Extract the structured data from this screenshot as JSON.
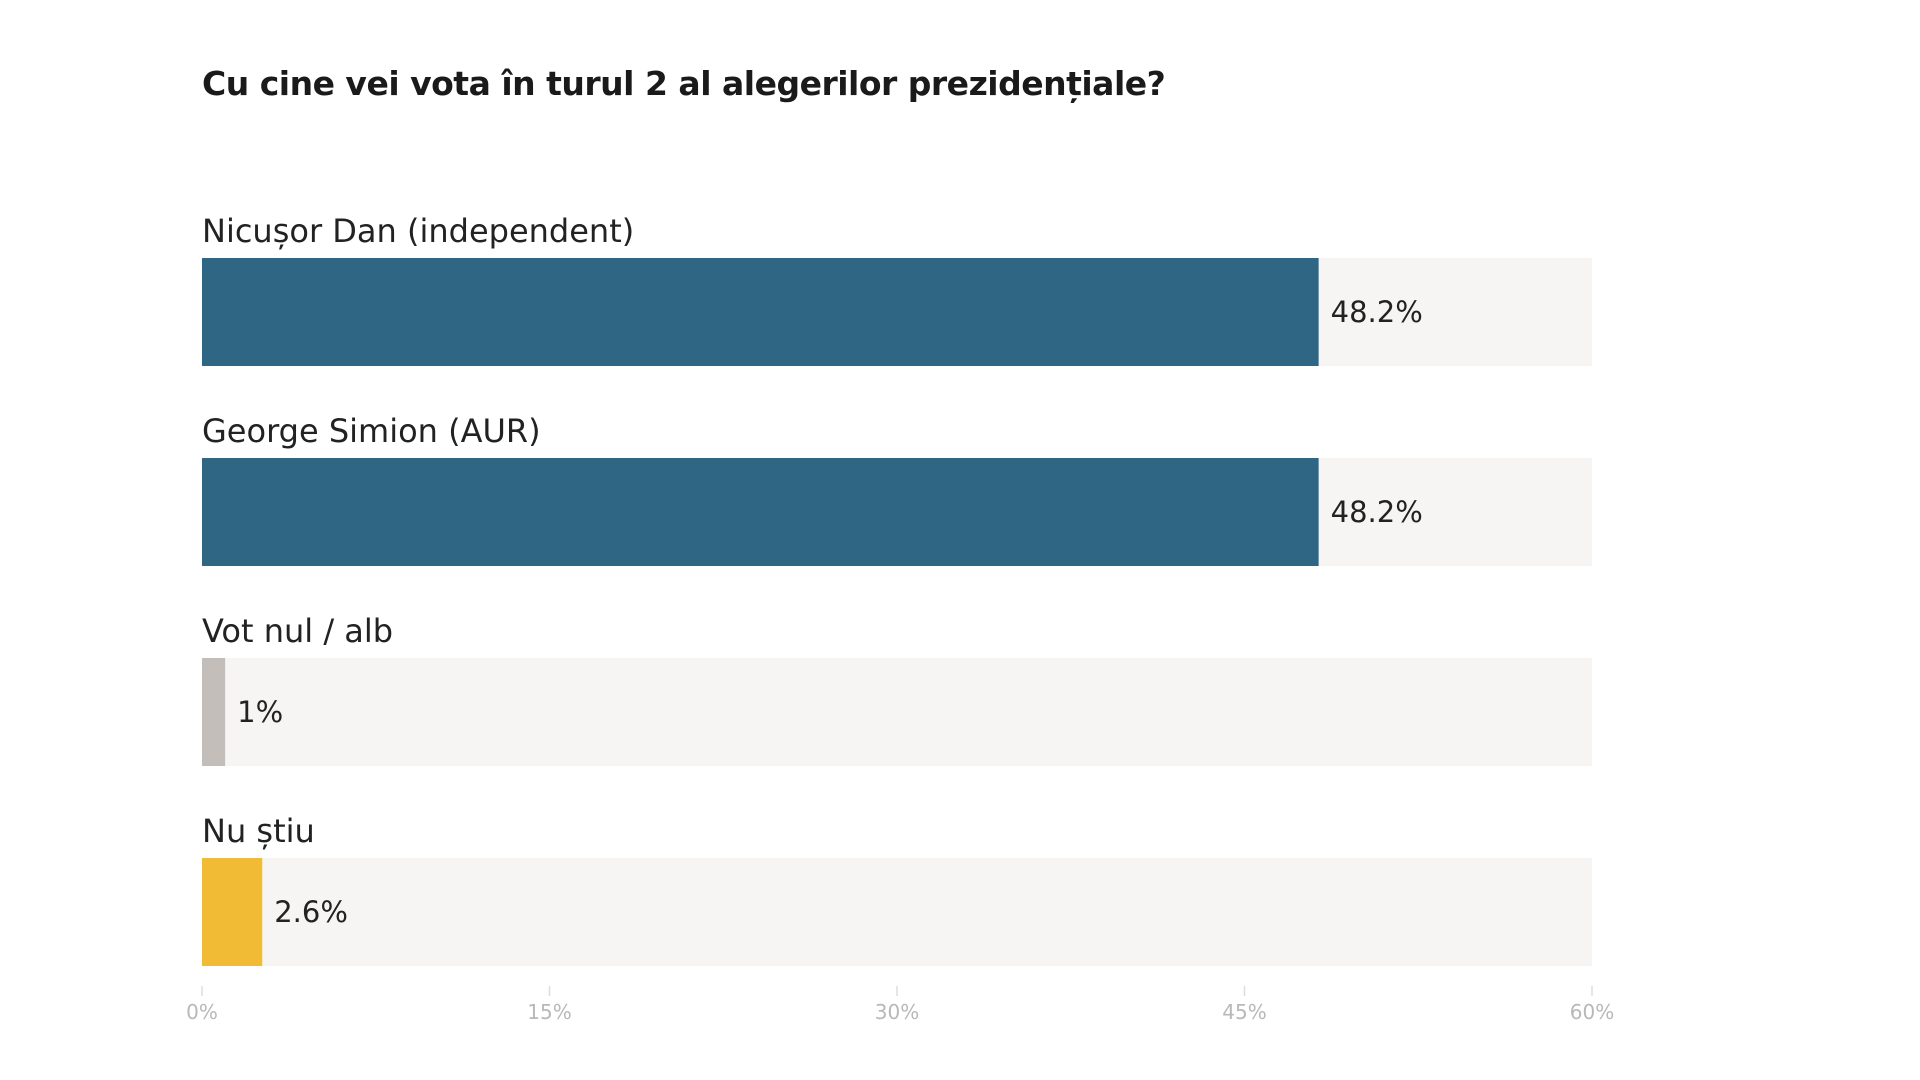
{
  "chart_data": {
    "type": "bar",
    "orientation": "horizontal",
    "title": "Cu cine vei vota în turul 2 al alegerilor prezidențiale?",
    "categories": [
      "Nicușor Dan (independent)",
      "George Simion (AUR)",
      "Vot nul / alb",
      "Nu știu"
    ],
    "values": [
      48.2,
      48.2,
      1,
      2.6
    ],
    "value_labels": [
      "48.2%",
      "48.2%",
      "1%",
      "2.6%"
    ],
    "colors": [
      "#2f6683",
      "#2f6683",
      "#c4bebb",
      "#f2bb36"
    ],
    "track_color": "#f6f5f3",
    "xlim": [
      0,
      60
    ],
    "x_ticks": [
      0,
      15,
      30,
      45,
      60
    ],
    "x_tick_labels": [
      "0%",
      "15%",
      "30%",
      "45%",
      "60%"
    ],
    "grid": false,
    "legend": "none"
  }
}
